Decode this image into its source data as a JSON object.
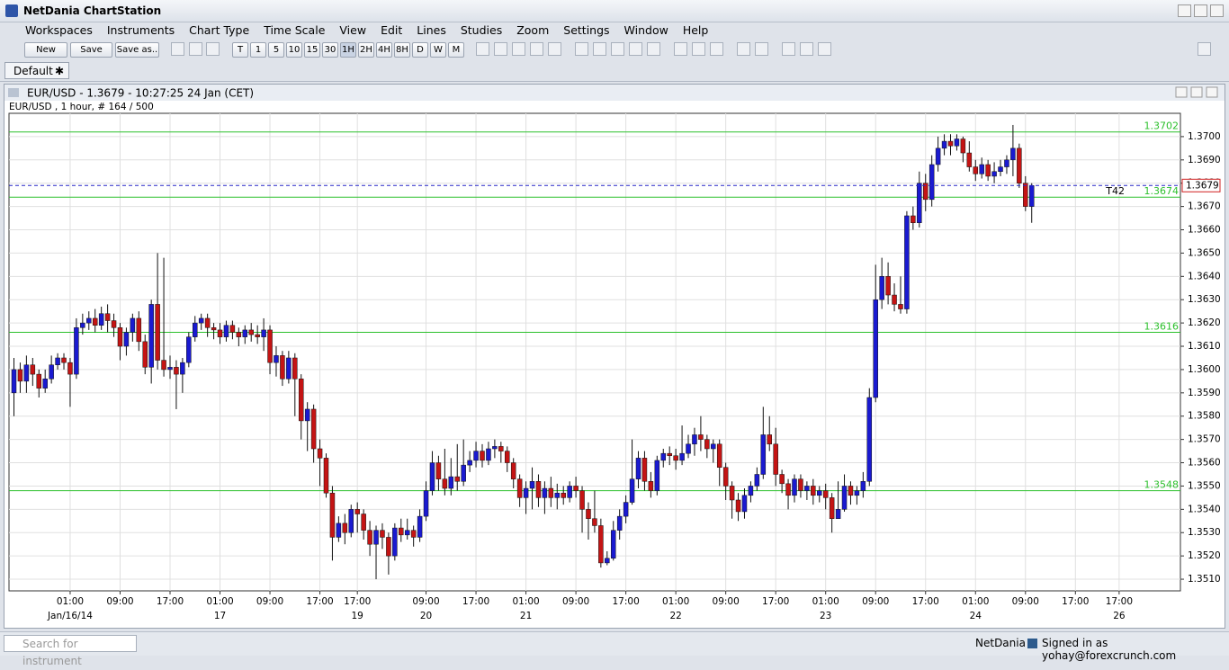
{
  "app": {
    "title": "NetDania ChartStation",
    "menu": [
      "Workspaces",
      "Instruments",
      "Chart Type",
      "Time Scale",
      "View",
      "Edit",
      "Lines",
      "Studies",
      "Zoom",
      "Settings",
      "Window",
      "Help"
    ],
    "toolbar_buttons": [
      "New",
      "Save",
      "Save as.."
    ],
    "timeframes": [
      "T",
      "1",
      "5",
      "10",
      "15",
      "30",
      "1H",
      "2H",
      "4H",
      "8H",
      "D",
      "W",
      "M"
    ],
    "tab": "Default",
    "search_placeholder": "Search for instrument",
    "status_brand": "NetDania",
    "status_user": "Signed in as yohay@forexcrunch.com"
  },
  "chart_data": {
    "type": "candlestick",
    "title": "EUR/USD - 1.3679 - 10:27:25  24 Jan (CET)",
    "subtitle": "EUR/USD , 1 hour, # 164 / 500",
    "categories": [
      null,
      null,
      null,
      null,
      null,
      null,
      null,
      null,
      null,
      "01:00",
      null,
      null,
      null,
      null,
      null,
      null,
      null,
      "09:00",
      null,
      null,
      null,
      null,
      null,
      null,
      null,
      "17:00",
      null,
      null,
      null,
      null,
      null,
      null,
      null,
      "01:00",
      null,
      null,
      null,
      null,
      null,
      null,
      null,
      "09:00",
      null,
      null,
      null,
      null,
      null,
      null,
      null,
      "17:00",
      null,
      null,
      null,
      null,
      null,
      "17:00",
      null,
      null,
      null,
      null,
      null,
      null,
      null,
      null,
      null,
      null,
      "09:00",
      null,
      null,
      null,
      null,
      null,
      null,
      null,
      "17:00",
      null,
      null,
      null,
      null,
      null,
      null,
      null,
      "01:00",
      null,
      null,
      null,
      null,
      null,
      null,
      null,
      "09:00",
      null,
      null,
      null,
      null,
      null,
      null,
      null,
      "17:00",
      null,
      null,
      null,
      null,
      null,
      null,
      null,
      "01:00",
      null,
      null,
      null,
      null,
      null,
      null,
      null,
      "09:00",
      null,
      null,
      null,
      null,
      null,
      null,
      null,
      "17:00",
      null,
      null,
      null,
      null,
      null,
      null,
      null,
      "01:00",
      null,
      null,
      null,
      null,
      null,
      null,
      null,
      "09:00",
      null,
      null,
      null,
      null,
      null,
      null,
      null,
      "17:00",
      null,
      null,
      null,
      null,
      null,
      null,
      null,
      "01:00",
      null,
      null,
      null,
      null,
      null,
      null,
      null,
      "09:00",
      null,
      null,
      null,
      null,
      null,
      null,
      null,
      "17:00",
      null,
      null,
      null,
      null,
      null,
      null,
      "17:00"
    ],
    "dates": [
      null,
      null,
      null,
      null,
      null,
      null,
      null,
      null,
      null,
      "Jan/16/14",
      null,
      null,
      null,
      null,
      null,
      null,
      null,
      null,
      null,
      null,
      null,
      null,
      null,
      null,
      null,
      null,
      null,
      null,
      null,
      null,
      null,
      null,
      null,
      "17",
      null,
      null,
      null,
      null,
      null,
      null,
      null,
      null,
      null,
      null,
      null,
      null,
      null,
      null,
      null,
      null,
      null,
      null,
      null,
      null,
      null,
      "19",
      null,
      null,
      null,
      null,
      null,
      null,
      null,
      null,
      null,
      null,
      "20",
      null,
      null,
      null,
      null,
      null,
      null,
      null,
      null,
      null,
      null,
      null,
      null,
      null,
      null,
      null,
      "21",
      null,
      null,
      null,
      null,
      null,
      null,
      null,
      null,
      null,
      null,
      null,
      null,
      null,
      null,
      null,
      null,
      null,
      null,
      null,
      null,
      null,
      null,
      null,
      "22",
      null,
      null,
      null,
      null,
      null,
      null,
      null,
      null,
      null,
      null,
      null,
      null,
      null,
      null,
      null,
      null,
      null,
      null,
      null,
      null,
      null,
      null,
      null,
      "23",
      null,
      null,
      null,
      null,
      null,
      null,
      null,
      null,
      null,
      null,
      null,
      null,
      null,
      null,
      null,
      null,
      null,
      null,
      null,
      null,
      null,
      null,
      null,
      "24",
      null,
      null,
      null,
      null,
      null,
      null,
      null,
      null,
      null,
      null,
      null,
      null,
      null,
      null,
      null,
      null,
      null,
      null,
      null,
      null,
      null,
      null,
      "26"
    ],
    "open": [
      1.359,
      1.36,
      1.3595,
      1.3602,
      1.3598,
      1.3592,
      1.3596,
      1.3602,
      1.3605,
      1.3603,
      1.3598,
      1.3618,
      1.362,
      1.3622,
      1.3619,
      1.3624,
      1.3621,
      1.3618,
      1.361,
      1.3616,
      1.3622,
      1.3612,
      1.3601,
      1.3628,
      1.3604,
      1.36,
      1.3601,
      1.3598,
      1.3603,
      1.3614,
      1.362,
      1.3622,
      1.3618,
      1.3617,
      1.3614,
      1.3619,
      1.3616,
      1.3614,
      1.3617,
      1.3615,
      1.3614,
      1.3617,
      1.3603,
      1.3606,
      1.3596,
      1.3605,
      1.3596,
      1.3578,
      1.3583,
      1.3566,
      1.3562,
      1.3547,
      1.3528,
      1.3534,
      1.353,
      1.354,
      1.3538,
      1.3531,
      1.3525,
      1.3531,
      1.3528,
      1.352,
      1.3532,
      1.3529,
      1.3531,
      1.3528,
      1.3537,
      1.3548,
      1.356,
      1.3553,
      1.3549,
      1.3554,
      1.3552,
      1.3559,
      1.3561,
      1.3565,
      1.3561,
      1.3566,
      1.3567,
      1.3565,
      1.356,
      1.3553,
      1.3545,
      1.3549,
      1.3552,
      1.3545,
      1.3549,
      1.3545,
      1.3547,
      1.3545,
      1.355,
      1.3548,
      1.354,
      1.3536,
      1.3533,
      1.3517,
      1.3519,
      1.3531,
      1.3537,
      1.3543,
      1.3553,
      1.3562,
      1.3552,
      1.3548,
      1.3561,
      1.3564,
      1.3563,
      1.3561,
      1.3564,
      1.3568,
      1.3572,
      1.357,
      1.3566,
      1.3568,
      1.3558,
      1.355,
      1.3544,
      1.3539,
      1.3546,
      1.355,
      1.3555,
      1.3572,
      1.3568,
      1.3555,
      1.3551,
      1.3546,
      1.3553,
      1.3548,
      1.355,
      1.3546,
      1.3548,
      1.3545,
      1.3536,
      1.354,
      1.355,
      1.3546,
      1.3548,
      1.3552,
      1.3588,
      1.363,
      1.364,
      1.3632,
      1.3628,
      1.3626,
      1.3666,
      1.3663,
      1.368,
      1.3673,
      1.3688,
      1.3695,
      1.3698,
      1.3696,
      1.3699,
      1.3693,
      1.3687,
      1.3684,
      1.3688,
      1.3683,
      1.3685,
      1.3687,
      1.369,
      1.3695,
      1.368,
      1.367,
      null,
      null,
      null,
      null,
      null,
      null,
      null,
      null,
      null,
      null,
      null,
      null,
      null,
      null
    ],
    "high": [
      1.3605,
      1.3603,
      1.3606,
      1.3605,
      1.36,
      1.36,
      1.3606,
      1.3607,
      1.3607,
      1.3605,
      1.3622,
      1.3624,
      1.3625,
      1.3626,
      1.3627,
      1.3628,
      1.3624,
      1.362,
      1.3618,
      1.3624,
      1.3625,
      1.3615,
      1.363,
      1.365,
      1.3648,
      1.3606,
      1.3604,
      1.3605,
      1.3616,
      1.3623,
      1.3624,
      1.3624,
      1.362,
      1.362,
      1.3621,
      1.3621,
      1.3618,
      1.3619,
      1.362,
      1.3619,
      1.3622,
      1.3619,
      1.361,
      1.3608,
      1.3608,
      1.3607,
      1.3598,
      1.3586,
      1.3585,
      1.357,
      1.3564,
      1.355,
      1.3537,
      1.3538,
      1.3542,
      1.3543,
      1.354,
      1.3535,
      1.3533,
      1.3534,
      1.353,
      1.3534,
      1.3536,
      1.3536,
      1.3533,
      1.354,
      1.3552,
      1.3565,
      1.3563,
      1.3566,
      1.3562,
      1.3568,
      1.357,
      1.3565,
      1.3569,
      1.3568,
      1.3569,
      1.357,
      1.3569,
      1.3567,
      1.3562,
      1.3555,
      1.3552,
      1.3558,
      1.3555,
      1.3552,
      1.3554,
      1.3551,
      1.355,
      1.3552,
      1.3554,
      1.355,
      1.3543,
      1.3548,
      1.3536,
      1.3522,
      1.3535,
      1.354,
      1.3546,
      1.357,
      1.3565,
      1.3565,
      1.3556,
      1.3563,
      1.3566,
      1.3567,
      1.3566,
      1.3576,
      1.3572,
      1.3575,
      1.358,
      1.3572,
      1.357,
      1.357,
      1.356,
      1.3552,
      1.3547,
      1.3549,
      1.3552,
      1.3558,
      1.3584,
      1.358,
      1.3575,
      1.3557,
      1.3553,
      1.3555,
      1.3555,
      1.3552,
      1.3553,
      1.355,
      1.3551,
      1.3547,
      1.3552,
      1.3555,
      1.3552,
      1.355,
      1.3556,
      1.3592,
      1.3645,
      1.3648,
      1.3646,
      1.3637,
      1.364,
      1.3668,
      1.367,
      1.3685,
      1.3684,
      1.3692,
      1.37,
      1.3701,
      1.3701,
      1.3701,
      1.37,
      1.3698,
      1.369,
      1.3691,
      1.369,
      1.3689,
      1.369,
      1.3692,
      1.3705,
      1.3697,
      1.3683,
      1.368,
      null,
      null,
      null,
      null,
      null,
      null,
      null,
      null,
      null,
      null,
      null,
      null,
      null,
      null
    ],
    "low": [
      1.358,
      1.359,
      1.359,
      1.3593,
      1.3588,
      1.359,
      1.3594,
      1.36,
      1.36,
      1.3584,
      1.3596,
      1.3615,
      1.3617,
      1.3616,
      1.3617,
      1.3616,
      1.3614,
      1.3604,
      1.3606,
      1.3612,
      1.3608,
      1.3598,
      1.3594,
      1.36,
      1.3597,
      1.3596,
      1.3583,
      1.359,
      1.3601,
      1.3612,
      1.3617,
      1.3614,
      1.3613,
      1.3611,
      1.3612,
      1.3613,
      1.361,
      1.3611,
      1.3612,
      1.3611,
      1.3608,
      1.3598,
      1.3597,
      1.3593,
      1.3594,
      1.358,
      1.357,
      1.3565,
      1.356,
      1.355,
      1.3545,
      1.3518,
      1.3526,
      1.3525,
      1.3528,
      1.353,
      1.3527,
      1.352,
      1.351,
      1.3523,
      1.3512,
      1.3518,
      1.3526,
      1.3527,
      1.3524,
      1.3526,
      1.3535,
      1.3546,
      1.3548,
      1.3546,
      1.3546,
      1.3548,
      1.355,
      1.3556,
      1.3558,
      1.3558,
      1.3559,
      1.3562,
      1.356,
      1.3556,
      1.3549,
      1.3541,
      1.3538,
      1.354,
      1.3541,
      1.3538,
      1.3541,
      1.354,
      1.3542,
      1.3543,
      1.3545,
      1.353,
      1.3527,
      1.353,
      1.3515,
      1.3516,
      1.3518,
      1.3527,
      1.3534,
      1.3542,
      1.3549,
      1.3548,
      1.3545,
      1.3546,
      1.3558,
      1.3559,
      1.3557,
      1.3559,
      1.3562,
      1.3563,
      1.3565,
      1.3562,
      1.356,
      1.355,
      1.3544,
      1.3536,
      1.3535,
      1.3536,
      1.3543,
      1.3548,
      1.3553,
      1.3565,
      1.355,
      1.3547,
      1.354,
      1.3543,
      1.3545,
      1.3544,
      1.3542,
      1.3543,
      1.354,
      1.353,
      1.3536,
      1.3539,
      1.3542,
      1.3542,
      1.3545,
      1.355,
      1.3586,
      1.3626,
      1.3628,
      1.3625,
      1.3624,
      1.3624,
      1.366,
      1.3661,
      1.3668,
      1.367,
      1.3685,
      1.3692,
      1.3692,
      1.3694,
      1.3689,
      1.3685,
      1.3681,
      1.3682,
      1.3681,
      1.368,
      1.3683,
      1.3684,
      1.3683,
      1.3678,
      1.3668,
      1.3663,
      null,
      null,
      null,
      null,
      null,
      null,
      null,
      null,
      null,
      null,
      null,
      null,
      null,
      null
    ],
    "close": [
      1.36,
      1.3595,
      1.3602,
      1.3598,
      1.3592,
      1.3596,
      1.3602,
      1.3605,
      1.3603,
      1.3598,
      1.3618,
      1.362,
      1.3622,
      1.3619,
      1.3624,
      1.3621,
      1.3618,
      1.361,
      1.3616,
      1.3622,
      1.3612,
      1.3601,
      1.3628,
      1.3604,
      1.36,
      1.3601,
      1.3598,
      1.3603,
      1.3614,
      1.362,
      1.3622,
      1.3618,
      1.3617,
      1.3614,
      1.3619,
      1.3616,
      1.3614,
      1.3617,
      1.3615,
      1.3614,
      1.3617,
      1.3603,
      1.3606,
      1.3596,
      1.3605,
      1.3596,
      1.3578,
      1.3583,
      1.3566,
      1.3562,
      1.3547,
      1.3528,
      1.3534,
      1.353,
      1.354,
      1.3538,
      1.3531,
      1.3525,
      1.3531,
      1.3528,
      1.352,
      1.3532,
      1.3529,
      1.3531,
      1.3528,
      1.3537,
      1.3548,
      1.356,
      1.3553,
      1.3549,
      1.3554,
      1.3552,
      1.3559,
      1.3561,
      1.3565,
      1.3561,
      1.3566,
      1.3567,
      1.3565,
      1.356,
      1.3553,
      1.3545,
      1.3549,
      1.3552,
      1.3545,
      1.3549,
      1.3545,
      1.3547,
      1.3545,
      1.355,
      1.3548,
      1.354,
      1.3536,
      1.3533,
      1.3517,
      1.3519,
      1.3531,
      1.3537,
      1.3543,
      1.3553,
      1.3562,
      1.3552,
      1.3548,
      1.3561,
      1.3564,
      1.3563,
      1.3561,
      1.3564,
      1.3568,
      1.3572,
      1.357,
      1.3566,
      1.3568,
      1.3558,
      1.355,
      1.3544,
      1.3539,
      1.3546,
      1.355,
      1.3555,
      1.3572,
      1.3568,
      1.3555,
      1.3551,
      1.3546,
      1.3553,
      1.3548,
      1.355,
      1.3546,
      1.3548,
      1.3545,
      1.3536,
      1.354,
      1.355,
      1.3546,
      1.3548,
      1.3552,
      1.3588,
      1.363,
      1.364,
      1.3632,
      1.3628,
      1.3626,
      1.3666,
      1.3663,
      1.368,
      1.3673,
      1.3688,
      1.3695,
      1.3698,
      1.3696,
      1.3699,
      1.3693,
      1.3687,
      1.3684,
      1.3688,
      1.3683,
      1.3685,
      1.3687,
      1.369,
      1.3695,
      1.368,
      1.367,
      1.3679,
      null,
      null,
      null,
      null,
      null,
      null,
      null,
      null,
      null,
      null,
      null,
      null,
      null,
      null
    ],
    "up_color": "#1a1ad0",
    "down_color": "#c41414",
    "ylim": [
      1.3505,
      1.371
    ],
    "yticks": [
      {
        "value": 1.351,
        "label": "1.3510"
      },
      {
        "value": 1.352,
        "label": "1.3520"
      },
      {
        "value": 1.353,
        "label": "1.3530"
      },
      {
        "value": 1.354,
        "label": "1.3540"
      },
      {
        "value": 1.355,
        "label": "1.3550"
      },
      {
        "value": 1.356,
        "label": "1.3560"
      },
      {
        "value": 1.357,
        "label": "1.3570"
      },
      {
        "value": 1.358,
        "label": "1.3580"
      },
      {
        "value": 1.359,
        "label": "1.3590"
      },
      {
        "value": 1.36,
        "label": "1.3600"
      },
      {
        "value": 1.361,
        "label": "1.3610"
      },
      {
        "value": 1.362,
        "label": "1.3620"
      },
      {
        "value": 1.363,
        "label": "1.3630"
      },
      {
        "value": 1.364,
        "label": "1.3640"
      },
      {
        "value": 1.365,
        "label": "1.3650"
      },
      {
        "value": 1.366,
        "label": "1.3660"
      },
      {
        "value": 1.367,
        "label": "1.3670"
      },
      {
        "value": 1.368,
        "label": "1.3680"
      },
      {
        "value": 1.369,
        "label": "1.3690"
      },
      {
        "value": 1.37,
        "label": "1.3700"
      }
    ],
    "grid": true,
    "levels": [
      {
        "value": 1.3702,
        "color": "#2cc02c"
      },
      {
        "value": 1.3674,
        "color": "#2cc02c"
      },
      {
        "value": 1.3616,
        "color": "#2cc02c"
      },
      {
        "value": 1.3548,
        "color": "#2cc02c"
      }
    ],
    "last_price": 1.3679,
    "last_price_color": "#2828c8",
    "marker_label": "T42"
  }
}
